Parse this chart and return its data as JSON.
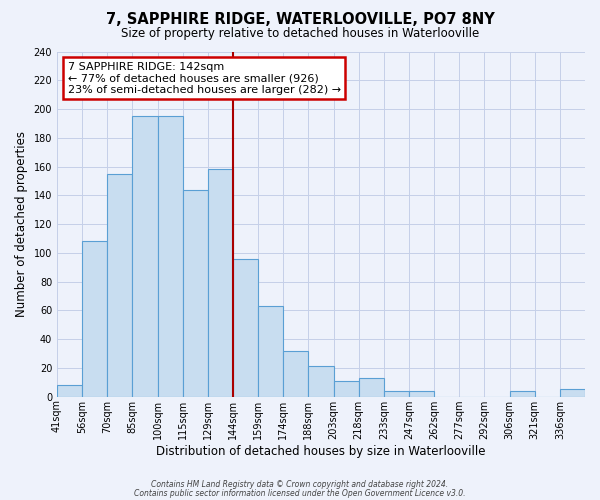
{
  "title": "7, SAPPHIRE RIDGE, WATERLOOVILLE, PO7 8NY",
  "subtitle": "Size of property relative to detached houses in Waterlooville",
  "xlabel": "Distribution of detached houses by size in Waterlooville",
  "ylabel": "Number of detached properties",
  "bin_labels": [
    "41sqm",
    "56sqm",
    "70sqm",
    "85sqm",
    "100sqm",
    "115sqm",
    "129sqm",
    "144sqm",
    "159sqm",
    "174sqm",
    "188sqm",
    "203sqm",
    "218sqm",
    "233sqm",
    "247sqm",
    "262sqm",
    "277sqm",
    "292sqm",
    "306sqm",
    "321sqm",
    "336sqm"
  ],
  "bar_heights": [
    8,
    108,
    155,
    195,
    195,
    144,
    158,
    96,
    63,
    32,
    21,
    11,
    13,
    4,
    4,
    0,
    0,
    0,
    4,
    0,
    5
  ],
  "bar_color": "#c8ddf0",
  "bar_edge_color": "#5a9fd4",
  "vline_index": 7,
  "annotation_title": "7 SAPPHIRE RIDGE: 142sqm",
  "annotation_line1": "← 77% of detached houses are smaller (926)",
  "annotation_line2": "23% of semi-detached houses are larger (282) →",
  "annotation_box_color": "#ffffff",
  "annotation_box_edge": "#cc0000",
  "ylim": [
    0,
    240
  ],
  "yticks": [
    0,
    20,
    40,
    60,
    80,
    100,
    120,
    140,
    160,
    180,
    200,
    220,
    240
  ],
  "footnote1": "Contains HM Land Registry data © Crown copyright and database right 2024.",
  "footnote2": "Contains public sector information licensed under the Open Government Licence v3.0.",
  "background_color": "#eef2fb",
  "grid_color": "#c5cfe8"
}
